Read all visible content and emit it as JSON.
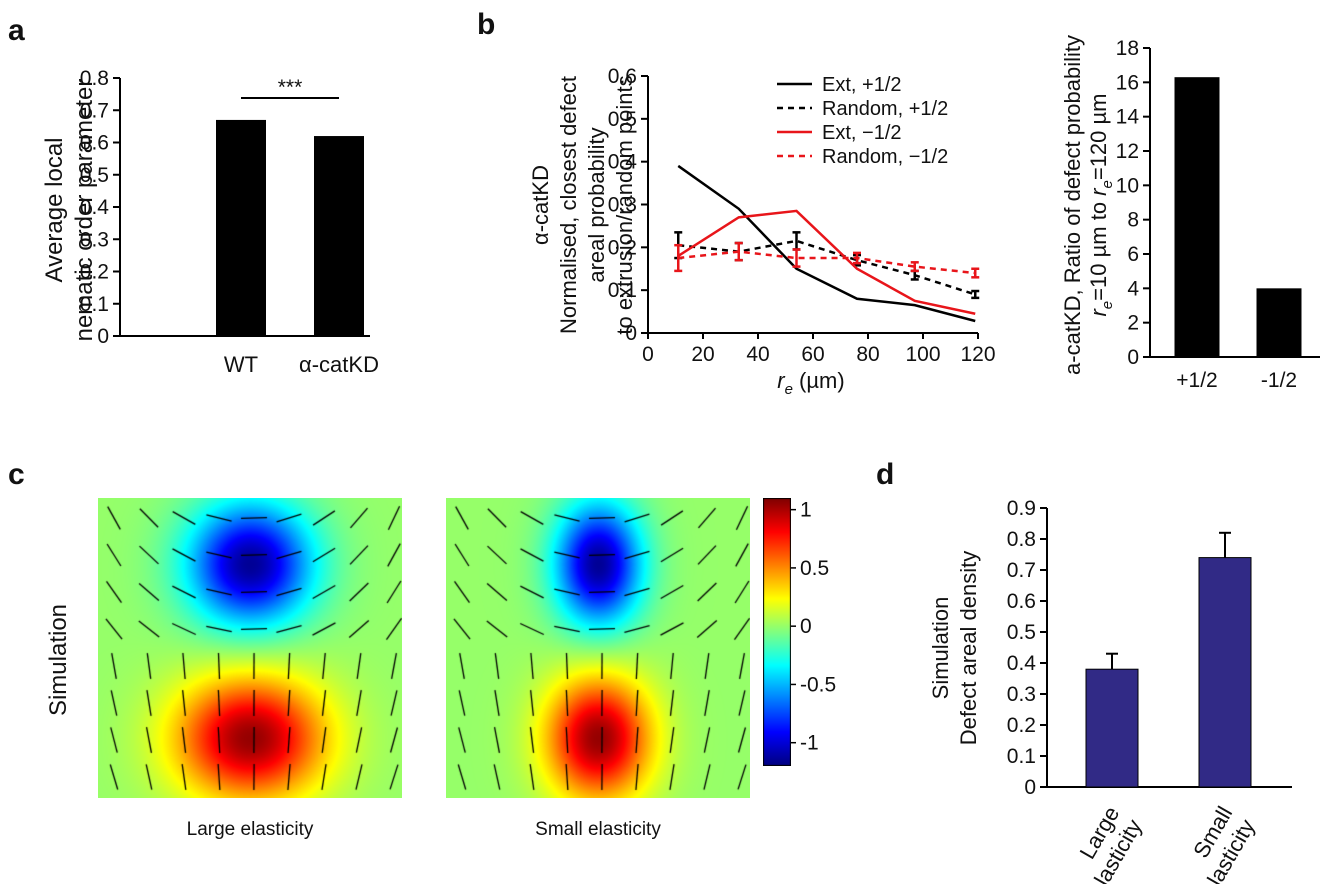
{
  "panel_letters": {
    "a": "a",
    "b": "b",
    "c": "c",
    "d": "d"
  },
  "chart_data": [
    {
      "id": "a",
      "type": "bar",
      "categories": [
        "WT",
        "α-catKD"
      ],
      "values": [
        0.67,
        0.62
      ],
      "ylabel_lines": [
        "Average local",
        "nematic order parameter"
      ],
      "ylim": [
        0,
        0.8
      ],
      "yticks": [
        "0",
        "0.1",
        "0.2",
        "0.3",
        "0.4",
        "0.5",
        "0.6",
        "0.7",
        "0.8"
      ],
      "significance": "***",
      "colors": [
        "#000000",
        "#000000"
      ]
    },
    {
      "id": "b_line",
      "type": "line",
      "x": [
        11,
        33,
        54,
        76,
        97,
        119
      ],
      "xlim": [
        0,
        120
      ],
      "xticks": [
        "0",
        "20",
        "40",
        "60",
        "80",
        "100",
        "120"
      ],
      "ylim": [
        0,
        0.6
      ],
      "yticks": [
        "0",
        "0.1",
        "0.2",
        "0.3",
        "0.4",
        "0.5",
        "0.6"
      ],
      "xlabel_symbol": "r",
      "xlabel_sub": "e",
      "xlabel_unit": " (µm)",
      "ylabel_lines": [
        "α-catKD",
        "Normalised, closest defect",
        "areal probability",
        "to extrusion/random points"
      ],
      "series": [
        {
          "name": "Ext, +1/2",
          "color": "#000000",
          "dashed": false,
          "values": [
            0.39,
            0.29,
            0.15,
            0.08,
            0.065,
            0.028
          ]
        },
        {
          "name": "Random, +1/2",
          "color": "#000000",
          "dashed": true,
          "values": [
            0.205,
            0.19,
            0.215,
            0.17,
            0.135,
            0.09
          ],
          "errors": [
            0.03,
            0.02,
            0.02,
            0.012,
            0.01,
            0.008
          ]
        },
        {
          "name": "Ext, −1/2",
          "color": "#e8151a",
          "dashed": false,
          "values": [
            0.18,
            0.27,
            0.285,
            0.15,
            0.075,
            0.045
          ]
        },
        {
          "name": "Random, −1/2",
          "color": "#e8151a",
          "dashed": true,
          "values": [
            0.175,
            0.19,
            0.175,
            0.175,
            0.155,
            0.14
          ],
          "errors": [
            0.03,
            0.02,
            0.02,
            0.012,
            0.01,
            0.01
          ]
        }
      ]
    },
    {
      "id": "b_bar",
      "type": "bar",
      "categories": [
        "+1/2",
        "-1/2"
      ],
      "values": [
        16.3,
        4.0
      ],
      "ylim": [
        0,
        18
      ],
      "yticks": [
        "0",
        "2",
        "4",
        "6",
        "8",
        "10",
        "12",
        "14",
        "16",
        "18"
      ],
      "ylabel_line1": "a-catKD, Ratio of defect probability",
      "ylabel_line2": {
        "r1": "r",
        "s1": "e",
        "mid": "=10 µm to ",
        "r2": "r",
        "s2": "e",
        "end": "=120 µm"
      },
      "colors": [
        "#000000",
        "#000000"
      ]
    },
    {
      "id": "c",
      "type": "heatmap",
      "ylabel": "Simulation",
      "maps": [
        {
          "caption": "Large elasticity",
          "spread": 1.0
        },
        {
          "caption": "Small elasticity",
          "spread": 0.62
        }
      ],
      "colorbar_ticks": [
        "1",
        "0.5",
        "0",
        "-0.5",
        "-1"
      ],
      "colorbar_range": [
        -1.2,
        1.1
      ]
    },
    {
      "id": "d",
      "type": "bar",
      "categories": [
        "Large elasticity",
        "Small elasticity"
      ],
      "category_lines": [
        [
          "Large",
          "elasticity"
        ],
        [
          "Small",
          "elasticity"
        ]
      ],
      "values": [
        0.38,
        0.74
      ],
      "errors": [
        0.05,
        0.08
      ],
      "ylim": [
        0,
        0.9
      ],
      "yticks": [
        "0",
        "0.1",
        "0.2",
        "0.3",
        "0.4",
        "0.5",
        "0.6",
        "0.7",
        "0.8",
        "0.9"
      ],
      "ylabel_lines": [
        "Simulation",
        "Defect areal density"
      ],
      "colors": [
        "#312a86",
        "#312a86"
      ]
    }
  ]
}
